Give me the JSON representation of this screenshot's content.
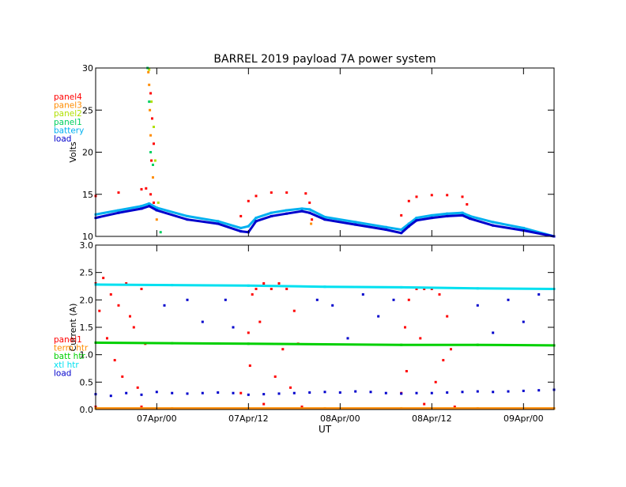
{
  "chart_data": {
    "title": "BARREL 2019 payload 7A power system",
    "xlabel": "UT",
    "x_ticks": [
      "07Apr/00",
      "07Apr/12",
      "08Apr/00",
      "08Apr/12",
      "09Apr/00"
    ],
    "x_unit": "hours since 06Apr/16",
    "x_range": [
      0,
      60
    ],
    "x_tick_values": [
      8,
      20,
      32,
      44,
      56
    ],
    "grid": false,
    "panels": [
      {
        "type": "scatter",
        "ylabel": "Volts",
        "ylim": [
          10,
          30
        ],
        "y_ticks": [
          "10",
          "15",
          "20",
          "25",
          "30"
        ],
        "y_tick_values": [
          10,
          15,
          20,
          25,
          30
        ],
        "legend": [
          "panel4",
          "panel3",
          "panel2",
          "panel1",
          "battery",
          "load"
        ],
        "legend_placement": "left",
        "series": [
          {
            "name": "panel4",
            "color": "#ff0000",
            "points": [
              [
                0,
                14.8
              ],
              [
                3,
                15.2
              ],
              [
                6,
                15.6
              ],
              [
                6.6,
                15.7
              ],
              [
                7.2,
                15.0
              ],
              [
                7.6,
                14.0
              ],
              [
                7.2,
                27
              ],
              [
                7.4,
                24
              ],
              [
                7.6,
                21
              ],
              [
                7.3,
                19
              ],
              [
                19,
                12.4
              ],
              [
                20,
                14.2
              ],
              [
                21,
                14.8
              ],
              [
                23,
                15.2
              ],
              [
                25,
                15.2
              ],
              [
                27.5,
                15.1
              ],
              [
                28,
                14.0
              ],
              [
                28.3,
                12.0
              ],
              [
                40,
                12.5
              ],
              [
                41,
                14.2
              ],
              [
                42,
                14.7
              ],
              [
                44,
                14.9
              ],
              [
                46,
                14.9
              ],
              [
                48,
                14.7
              ],
              [
                48.6,
                13.8
              ]
            ]
          },
          {
            "name": "panel3",
            "color": "#ff8c00",
            "points": [
              [
                6.9,
                29.5
              ],
              [
                7.0,
                28
              ],
              [
                7.1,
                25
              ],
              [
                7.2,
                22
              ],
              [
                7.5,
                17
              ],
              [
                8.0,
                12
              ],
              [
                28.2,
                11.5
              ],
              [
                48.8,
                12.5
              ]
            ]
          },
          {
            "name": "panel2",
            "color": "#b0e000",
            "points": [
              [
                7.0,
                29.8
              ],
              [
                7.3,
                26
              ],
              [
                7.6,
                23
              ],
              [
                7.8,
                19
              ],
              [
                8.2,
                14
              ]
            ]
          },
          {
            "name": "panel1",
            "color": "#00d060",
            "points": [
              [
                6.8,
                30
              ],
              [
                7.0,
                26
              ],
              [
                7.2,
                20
              ],
              [
                7.5,
                18.5
              ],
              [
                8.5,
                10.5
              ]
            ]
          },
          {
            "name": "battery",
            "color": "#00b0f0",
            "points": [
              [
                0,
                12.6
              ],
              [
                3,
                13.1
              ],
              [
                6,
                13.6
              ],
              [
                7,
                13.9
              ],
              [
                8,
                13.4
              ],
              [
                12,
                12.4
              ],
              [
                16,
                11.8
              ],
              [
                19,
                11.0
              ],
              [
                20,
                11.2
              ],
              [
                21,
                12.2
              ],
              [
                23,
                12.8
              ],
              [
                25,
                13.1
              ],
              [
                27,
                13.3
              ],
              [
                28,
                13.2
              ],
              [
                30,
                12.3
              ],
              [
                34,
                11.7
              ],
              [
                38,
                11.1
              ],
              [
                40,
                10.8
              ],
              [
                41,
                11.5
              ],
              [
                42,
                12.2
              ],
              [
                44,
                12.5
              ],
              [
                46,
                12.7
              ],
              [
                48,
                12.8
              ],
              [
                49,
                12.4
              ],
              [
                52,
                11.7
              ],
              [
                56,
                11.0
              ],
              [
                60,
                10.0
              ]
            ]
          },
          {
            "name": "load",
            "color": "#0000cc",
            "points": [
              [
                0,
                12.2
              ],
              [
                3,
                12.8
              ],
              [
                6,
                13.3
              ],
              [
                7,
                13.6
              ],
              [
                8,
                13.1
              ],
              [
                12,
                12.0
              ],
              [
                16,
                11.5
              ],
              [
                19,
                10.6
              ],
              [
                20,
                10.5
              ],
              [
                21,
                11.8
              ],
              [
                23,
                12.4
              ],
              [
                25,
                12.7
              ],
              [
                27,
                13.0
              ],
              [
                28,
                12.8
              ],
              [
                30,
                12.0
              ],
              [
                34,
                11.4
              ],
              [
                38,
                10.8
              ],
              [
                40,
                10.4
              ],
              [
                41,
                11.2
              ],
              [
                42,
                11.9
              ],
              [
                44,
                12.2
              ],
              [
                46,
                12.4
              ],
              [
                48,
                12.5
              ],
              [
                49,
                12.1
              ],
              [
                52,
                11.3
              ],
              [
                56,
                10.7
              ],
              [
                60,
                9.9
              ]
            ]
          }
        ]
      },
      {
        "type": "scatter",
        "ylabel": "Current (A)",
        "ylim": [
          0,
          3
        ],
        "y_ticks": [
          "0.0",
          "0.5",
          "1.0",
          "1.5",
          "2.0",
          "2.5",
          "3.0"
        ],
        "y_tick_values": [
          0,
          0.5,
          1.0,
          1.5,
          2.0,
          2.5,
          3.0
        ],
        "legend": [
          "panel1",
          "term htr",
          "batt htr",
          "xtl htr",
          "load"
        ],
        "legend_placement": "left",
        "series": [
          {
            "name": "panel1",
            "color": "#ff0000",
            "points": [
              [
                0,
                2.3
              ],
              [
                1,
                2.4
              ],
              [
                2,
                2.1
              ],
              [
                3,
                1.9
              ],
              [
                4,
                2.3
              ],
              [
                5,
                1.5
              ],
              [
                6,
                2.2
              ],
              [
                6.5,
                1.2
              ],
              [
                0.5,
                1.8
              ],
              [
                1.5,
                1.3
              ],
              [
                2.5,
                0.9
              ],
              [
                3.5,
                0.6
              ],
              [
                4.5,
                1.7
              ],
              [
                5.5,
                0.4
              ],
              [
                0,
                0.05
              ],
              [
                6,
                0.05
              ],
              [
                19,
                0.3
              ],
              [
                20,
                1.4
              ],
              [
                20.5,
                2.1
              ],
              [
                21,
                2.2
              ],
              [
                22,
                2.3
              ],
              [
                23,
                2.2
              ],
              [
                24,
                2.3
              ],
              [
                25,
                2.2
              ],
              [
                26,
                1.8
              ],
              [
                26.5,
                1.2
              ],
              [
                20.2,
                0.8
              ],
              [
                21.5,
                1.6
              ],
              [
                23.5,
                0.6
              ],
              [
                24.5,
                1.1
              ],
              [
                25.5,
                0.4
              ],
              [
                22,
                0.1
              ],
              [
                27,
                0.05
              ],
              [
                40,
                0.3
              ],
              [
                40.5,
                1.5
              ],
              [
                41,
                2.0
              ],
              [
                42,
                2.2
              ],
              [
                43,
                2.2
              ],
              [
                44,
                2.2
              ],
              [
                45,
                2.1
              ],
              [
                46,
                1.7
              ],
              [
                46.5,
                1.1
              ],
              [
                40.7,
                0.7
              ],
              [
                42.5,
                1.3
              ],
              [
                44.5,
                0.5
              ],
              [
                45.5,
                0.9
              ],
              [
                43,
                0.1
              ],
              [
                47,
                0.05
              ]
            ]
          },
          {
            "name": "term htr",
            "color": "#ff8c00",
            "points": [
              [
                0,
                0.02
              ],
              [
                10,
                0.02
              ],
              [
                20,
                0.02
              ],
              [
                30,
                0.02
              ],
              [
                40,
                0.02
              ],
              [
                50,
                0.02
              ],
              [
                60,
                0.02
              ]
            ]
          },
          {
            "name": "batt htr",
            "color": "#00d000",
            "points": [
              [
                0,
                1.22
              ],
              [
                10,
                1.21
              ],
              [
                20,
                1.2
              ],
              [
                30,
                1.19
              ],
              [
                40,
                1.18
              ],
              [
                50,
                1.18
              ],
              [
                60,
                1.17
              ]
            ]
          },
          {
            "name": "xtl htr",
            "color": "#00e0f0",
            "points": [
              [
                0,
                2.28
              ],
              [
                10,
                2.27
              ],
              [
                20,
                2.26
              ],
              [
                30,
                2.24
              ],
              [
                40,
                2.23
              ],
              [
                50,
                2.21
              ],
              [
                60,
                2.2
              ]
            ]
          },
          {
            "name": "load",
            "color": "#0000cc",
            "points": [
              [
                0,
                0.28
              ],
              [
                2,
                0.25
              ],
              [
                4,
                0.3
              ],
              [
                6,
                0.27
              ],
              [
                8,
                0.32
              ],
              [
                10,
                0.3
              ],
              [
                12,
                0.29
              ],
              [
                14,
                0.3
              ],
              [
                16,
                0.31
              ],
              [
                18,
                0.3
              ],
              [
                20,
                0.27
              ],
              [
                22,
                0.28
              ],
              [
                24,
                0.29
              ],
              [
                26,
                0.3
              ],
              [
                28,
                0.31
              ],
              [
                30,
                0.32
              ],
              [
                32,
                0.31
              ],
              [
                34,
                0.33
              ],
              [
                36,
                0.32
              ],
              [
                38,
                0.3
              ],
              [
                40,
                0.29
              ],
              [
                42,
                0.3
              ],
              [
                44,
                0.3
              ],
              [
                46,
                0.31
              ],
              [
                48,
                0.32
              ],
              [
                50,
                0.33
              ],
              [
                52,
                0.32
              ],
              [
                54,
                0.33
              ],
              [
                56,
                0.34
              ],
              [
                58,
                0.35
              ],
              [
                60,
                0.36
              ],
              [
                9,
                1.9
              ],
              [
                12,
                2.0
              ],
              [
                14,
                1.6
              ],
              [
                17,
                2.0
              ],
              [
                18,
                1.5
              ],
              [
                29,
                2.0
              ],
              [
                31,
                1.9
              ],
              [
                33,
                1.3
              ],
              [
                35,
                2.1
              ],
              [
                37,
                1.7
              ],
              [
                39,
                2.0
              ],
              [
                50,
                1.9
              ],
              [
                52,
                1.4
              ],
              [
                54,
                2.0
              ],
              [
                56,
                1.6
              ],
              [
                58,
                2.1
              ]
            ]
          }
        ]
      }
    ]
  }
}
